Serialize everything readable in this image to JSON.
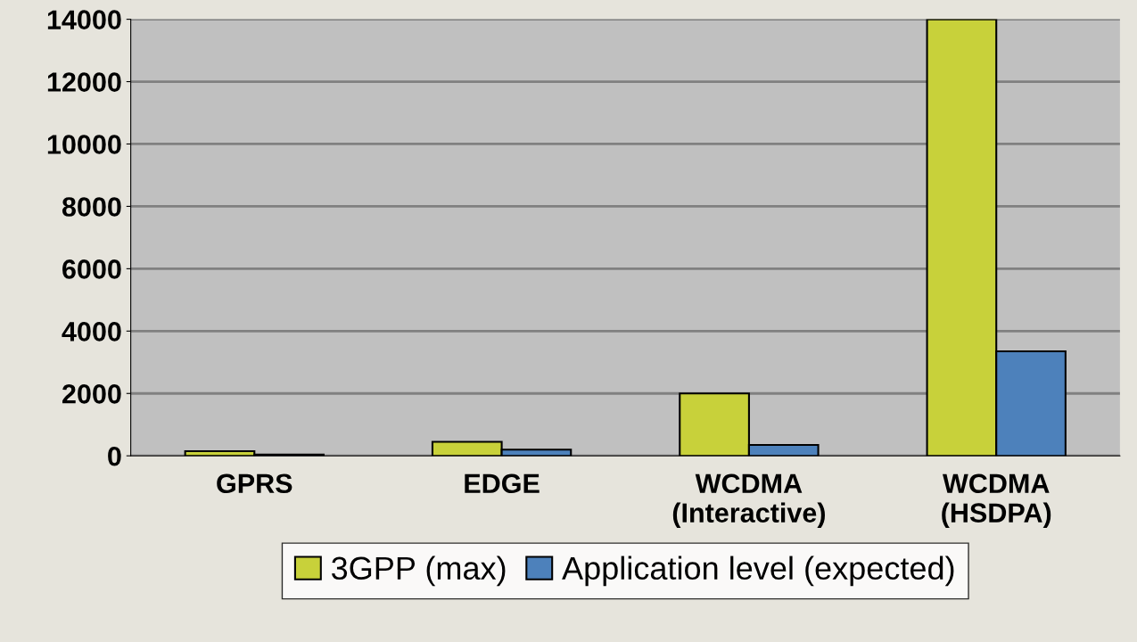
{
  "chart_data": {
    "type": "bar",
    "categories": [
      "GPRS",
      "EDGE",
      "WCDMA\n(Interactive)",
      "WCDMA\n(HSDPA)"
    ],
    "series": [
      {
        "name": "3GPP (max)",
        "color": "#c8d13a",
        "values": [
          150,
          450,
          2000,
          14000
        ]
      },
      {
        "name": "Application level (expected)",
        "color": "#4d81bb",
        "values": [
          40,
          200,
          350,
          3350
        ]
      }
    ],
    "ylim": [
      0,
      14000
    ],
    "yticks": [
      0,
      2000,
      4000,
      6000,
      8000,
      10000,
      12000,
      14000
    ],
    "grid": "y",
    "legend": "bottom"
  }
}
